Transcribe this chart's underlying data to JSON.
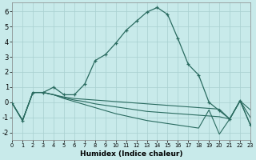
{
  "xlabel": "Humidex (Indice chaleur)",
  "bg_color": "#c8eaea",
  "grid_color": "#a8d0d0",
  "line_color": "#2a6b60",
  "xlim": [
    0,
    23
  ],
  "ylim": [
    -2.5,
    6.6
  ],
  "yticks": [
    -2,
    -1,
    0,
    1,
    2,
    3,
    4,
    5,
    6
  ],
  "xticks": [
    0,
    1,
    2,
    3,
    4,
    5,
    6,
    7,
    8,
    9,
    10,
    11,
    12,
    13,
    14,
    15,
    16,
    17,
    18,
    19,
    20,
    21,
    22,
    23
  ],
  "main_x": [
    0,
    1,
    2,
    3,
    4,
    5,
    6,
    7,
    8,
    9,
    10,
    11,
    12,
    13,
    14,
    15,
    16,
    17,
    18,
    19,
    20,
    21,
    22,
    23
  ],
  "main_y": [
    -0.05,
    -1.2,
    0.65,
    0.65,
    1.0,
    0.5,
    0.5,
    1.2,
    2.75,
    3.15,
    3.9,
    4.75,
    5.35,
    5.95,
    6.25,
    5.8,
    4.2,
    2.5,
    1.8,
    0.0,
    -0.55,
    -1.1,
    0.1,
    -1.5
  ],
  "line1_x": [
    0,
    1,
    2,
    3,
    4,
    5,
    6,
    7,
    8,
    9,
    10,
    11,
    12,
    13,
    14,
    15,
    16,
    17,
    18,
    19,
    20,
    21,
    22,
    23
  ],
  "line1_y": [
    -0.05,
    -1.2,
    0.65,
    0.65,
    0.5,
    0.35,
    0.25,
    0.2,
    0.15,
    0.1,
    0.05,
    0.0,
    -0.05,
    -0.1,
    -0.15,
    -0.2,
    -0.25,
    -0.3,
    -0.35,
    -0.4,
    -0.45,
    -1.1,
    0.1,
    -0.5
  ],
  "line2_x": [
    0,
    1,
    2,
    3,
    4,
    5,
    6,
    7,
    8,
    9,
    10,
    11,
    12,
    13,
    14,
    15,
    16,
    17,
    18,
    19,
    20,
    21,
    22,
    23
  ],
  "line2_y": [
    -0.05,
    -1.2,
    0.65,
    0.65,
    0.5,
    0.3,
    0.15,
    0.05,
    -0.1,
    -0.2,
    -0.3,
    -0.4,
    -0.5,
    -0.6,
    -0.65,
    -0.7,
    -0.75,
    -0.8,
    -0.85,
    -0.9,
    -0.95,
    -1.1,
    0.1,
    -1.0
  ],
  "line3_x": [
    0,
    1,
    2,
    3,
    4,
    5,
    6,
    7,
    8,
    9,
    10,
    11,
    12,
    13,
    14,
    15,
    16,
    17,
    18,
    19,
    20,
    21,
    22,
    23
  ],
  "line3_y": [
    -0.05,
    -1.2,
    0.65,
    0.65,
    0.5,
    0.25,
    0.05,
    -0.15,
    -0.35,
    -0.55,
    -0.75,
    -0.9,
    -1.05,
    -1.2,
    -1.3,
    -1.4,
    -1.5,
    -1.6,
    -1.7,
    -0.5,
    -2.1,
    -1.1,
    0.1,
    -1.5
  ]
}
